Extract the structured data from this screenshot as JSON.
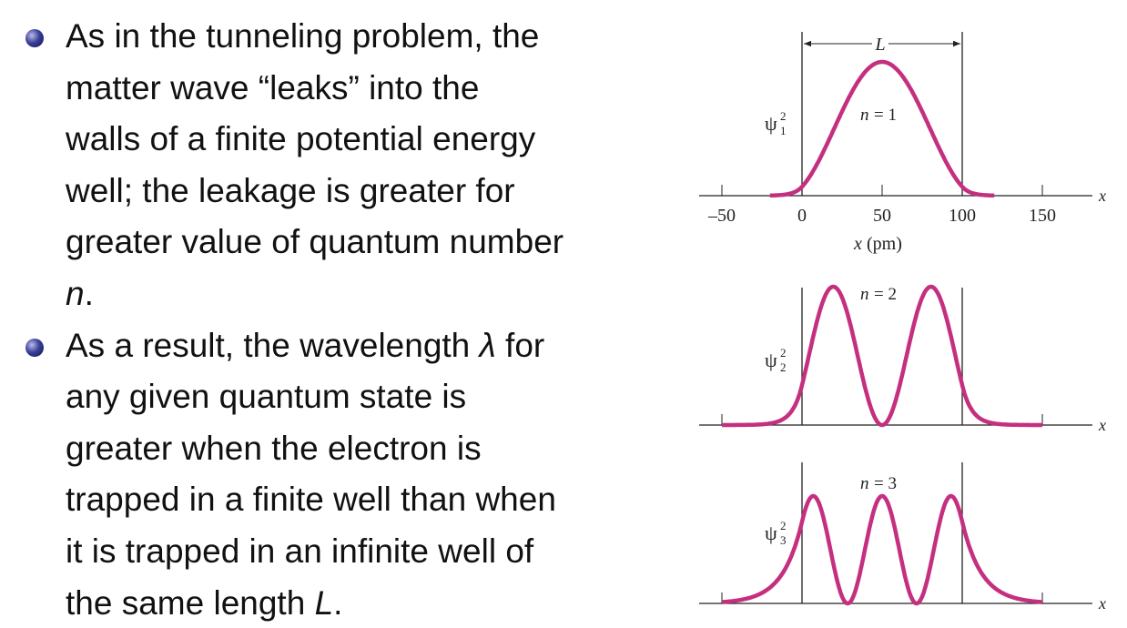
{
  "bullets": [
    {
      "lines": [
        [
          "As in the tunneling problem, the"
        ],
        [
          "matter wave “leaks” into the"
        ],
        [
          "walls of a finite potential energy"
        ],
        [
          "well; the leakage is greater for"
        ],
        [
          "greater value of quantum number"
        ],
        [
          {
            "text": "n",
            "italic": true
          },
          "."
        ]
      ]
    },
    {
      "lines": [
        [
          "As a result, the wavelength ",
          {
            "text": "λ",
            "italic": true
          },
          " for"
        ],
        [
          "any given quantum state is"
        ],
        [
          "greater when the electron is"
        ],
        [
          "trapped in a finite well than when"
        ],
        [
          "it is trapped in an infinite well of"
        ],
        [
          "the same length ",
          {
            "text": "L",
            "italic": true
          },
          "."
        ]
      ]
    }
  ],
  "figure": {
    "L_label": "L",
    "x_axis_label": {
      "var": "x",
      "unit": "(pm)"
    },
    "axis_end_label": "x",
    "x_ticks": [
      {
        "value": -50,
        "label": "–50"
      },
      0,
      50,
      100,
      150
    ],
    "panels": [
      {
        "psi": "ψ",
        "sup": "2",
        "sub": "1",
        "n_var": "n",
        "n_value": "= 1"
      },
      {
        "psi": "ψ",
        "sup": "2",
        "sub": "2",
        "n_var": "n",
        "n_value": "= 2"
      },
      {
        "psi": "ψ",
        "sup": "2",
        "sub": "3",
        "n_var": "n",
        "n_value": "= 3"
      }
    ]
  }
}
